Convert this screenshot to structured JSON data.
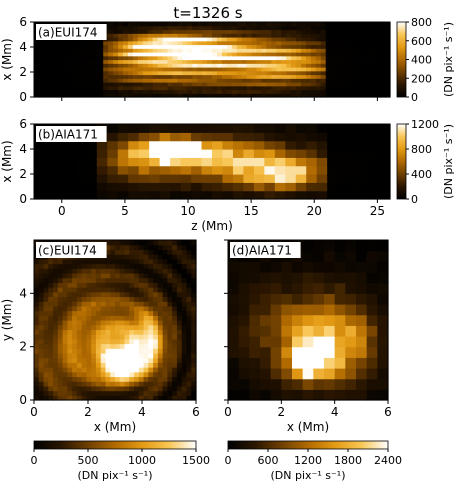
{
  "figure": {
    "title": "t=1326 s"
  },
  "colors": {
    "cmap": [
      "#000000",
      "#2a1600",
      "#6e3f00",
      "#b06a00",
      "#e39a14",
      "#f8c655",
      "#ffffff"
    ],
    "frame": "#000000",
    "label_bg": "#ffffff"
  },
  "chart_data": [
    {
      "id": "a",
      "type": "heatmap",
      "label": "(a)EUI174",
      "xlabel": "",
      "ylabel": "x (Mm)",
      "xlim": [
        -2.2,
        26
      ],
      "ylim": [
        0,
        6
      ],
      "xticks": [
        0,
        5,
        10,
        15,
        20,
        25
      ],
      "yticks": [
        0,
        2,
        4,
        6
      ],
      "xticklabels_visible": false,
      "colorbar": {
        "label": "(DN pix⁻¹ s⁻¹)",
        "ticks": [
          0,
          200,
          400,
          600,
          800
        ],
        "max": 800
      },
      "grid": {
        "nz": 72,
        "nx": 20
      },
      "texture": "fine",
      "dark_z_ranges": [
        [
          -2.2,
          3.3
        ],
        [
          20.8,
          26
        ]
      ],
      "features": [
        {
          "z": 8.5,
          "x": 4.1,
          "sz": 2.6,
          "sx": 0.6,
          "amp": 0.95
        },
        {
          "z": 10.5,
          "x": 3.7,
          "sz": 4.0,
          "sx": 0.9,
          "amp": 0.55
        },
        {
          "z": 14.0,
          "x": 3.2,
          "sz": 5.0,
          "sx": 1.3,
          "amp": 0.45
        },
        {
          "z": 18.0,
          "x": 2.6,
          "sz": 2.5,
          "sx": 1.0,
          "amp": 0.45
        },
        {
          "z": 6.5,
          "x": 2.5,
          "sz": 3.0,
          "sx": 1.0,
          "amp": 0.35
        },
        {
          "z": 12.0,
          "x": 1.6,
          "sz": 6.0,
          "sx": 0.8,
          "amp": 0.25
        }
      ]
    },
    {
      "id": "b",
      "type": "heatmap",
      "label": "(b)AIA171",
      "xlabel": "z (Mm)",
      "ylabel": "x (Mm)",
      "xlim": [
        -2.2,
        26
      ],
      "ylim": [
        0,
        6
      ],
      "xticks": [
        0,
        5,
        10,
        15,
        20,
        25
      ],
      "yticks": [
        0,
        2,
        4,
        6
      ],
      "xticklabels_visible": true,
      "colorbar": {
        "label": "(DN pix⁻¹ s⁻¹)",
        "ticks": [
          0,
          400,
          800,
          1200
        ],
        "max": 1200
      },
      "grid": {
        "nz": 34,
        "nx": 9
      },
      "texture": "coarse",
      "dark_z_ranges": [
        [
          -2.2,
          3.0
        ],
        [
          21.2,
          26
        ]
      ],
      "features": [
        {
          "z": 8.5,
          "x": 4.0,
          "sz": 1.7,
          "sx": 0.6,
          "amp": 1.0
        },
        {
          "z": 11.5,
          "x": 3.6,
          "sz": 4.0,
          "sx": 1.0,
          "amp": 0.55
        },
        {
          "z": 17.5,
          "x": 2.0,
          "sz": 2.2,
          "sx": 0.8,
          "amp": 0.65
        },
        {
          "z": 14.5,
          "x": 2.6,
          "sz": 5.0,
          "sx": 1.2,
          "amp": 0.35
        },
        {
          "z": 6.0,
          "x": 3.0,
          "sz": 2.0,
          "sx": 1.2,
          "amp": 0.3
        }
      ]
    },
    {
      "id": "c",
      "type": "heatmap",
      "label": "(c)EUI174",
      "xlabel": "x (Mm)",
      "ylabel": "y (Mm)",
      "xlim": [
        0,
        6
      ],
      "ylim": [
        0,
        6
      ],
      "xticks": [
        0,
        2,
        4,
        6
      ],
      "yticks": [
        0,
        2,
        4
      ],
      "xticklabels_visible": true,
      "colorbar": {
        "label": "(DN pix⁻¹ s⁻¹)",
        "ticks": [
          0,
          500,
          1000,
          1500
        ],
        "max": 1500
      },
      "grid": {
        "nz": 34,
        "nx": 34
      },
      "texture": "swirl",
      "dark_z_ranges": [],
      "features": [
        {
          "z": 3.2,
          "x": 1.3,
          "sz": 0.5,
          "sx": 0.4,
          "amp": 1.0
        },
        {
          "z": 3.6,
          "x": 2.0,
          "sz": 0.9,
          "sx": 0.8,
          "amp": 0.55
        },
        {
          "z": 4.3,
          "x": 2.3,
          "sz": 0.4,
          "sx": 0.9,
          "amp": 0.45
        },
        {
          "z": 2.2,
          "x": 3.0,
          "sz": 1.2,
          "sx": 1.5,
          "amp": 0.3
        },
        {
          "z": 1.2,
          "x": 1.5,
          "sz": 0.8,
          "sx": 1.0,
          "amp": 0.25
        }
      ]
    },
    {
      "id": "d",
      "type": "heatmap",
      "label": "(d)AIA171",
      "xlabel": "x (Mm)",
      "ylabel": "",
      "xlim": [
        0,
        6
      ],
      "ylim": [
        0,
        6
      ],
      "xticks": [
        0,
        2,
        4,
        6
      ],
      "yticks": [],
      "xticklabels_visible": true,
      "colorbar": {
        "label": "(DN pix⁻¹ s⁻¹)",
        "ticks": [
          0,
          600,
          1200,
          1800,
          2400
        ],
        "max": 2400
      },
      "grid": {
        "nz": 15,
        "nx": 15
      },
      "texture": "coarse",
      "dark_z_ranges": [],
      "features": [
        {
          "z": 3.1,
          "x": 1.5,
          "sz": 0.5,
          "sx": 0.4,
          "amp": 1.0
        },
        {
          "z": 3.6,
          "x": 1.9,
          "sz": 1.1,
          "sx": 0.9,
          "amp": 0.55
        },
        {
          "z": 2.5,
          "x": 2.8,
          "sz": 1.5,
          "sx": 1.2,
          "amp": 0.3
        },
        {
          "z": 4.5,
          "x": 2.5,
          "sz": 0.8,
          "sx": 1.0,
          "amp": 0.25
        }
      ]
    }
  ]
}
